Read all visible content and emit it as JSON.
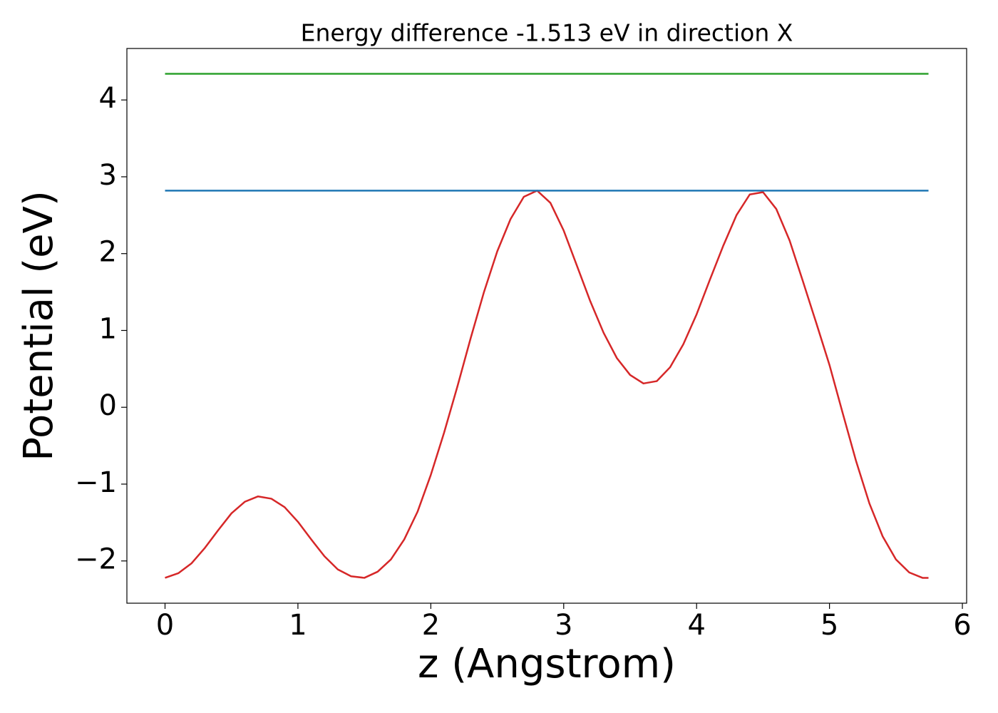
{
  "chart_data": {
    "type": "line",
    "title": "Energy difference -1.513 eV in direction X",
    "xlabel": "z (Angstrom)",
    "ylabel": "Potential (eV)",
    "xlim": [
      -0.287,
      6.032
    ],
    "ylim": [
      -2.55,
      4.67
    ],
    "xticks": [
      0,
      1,
      2,
      3,
      4,
      5,
      6
    ],
    "yticks": [
      {
        "value": -2,
        "label": "−2"
      },
      {
        "value": -1,
        "label": "−1"
      },
      0,
      1,
      2,
      3,
      4
    ],
    "series": [
      {
        "color": "#d62728",
        "x": [
          0,
          0.1,
          0.2,
          0.3,
          0.4,
          0.5,
          0.6,
          0.7,
          0.8,
          0.9,
          1.0,
          1.1,
          1.2,
          1.3,
          1.4,
          1.5,
          1.6,
          1.7,
          1.8,
          1.9,
          2.0,
          2.1,
          2.2,
          2.3,
          2.4,
          2.5,
          2.6,
          2.7,
          2.8,
          2.9,
          3.0,
          3.1,
          3.2,
          3.3,
          3.4,
          3.5,
          3.6,
          3.7,
          3.8,
          3.9,
          4.0,
          4.1,
          4.2,
          4.3,
          4.4,
          4.5,
          4.6,
          4.7,
          4.8,
          4.9,
          5.0,
          5.1,
          5.2,
          5.3,
          5.4,
          5.5,
          5.6,
          5.7,
          5.745
        ],
        "values": [
          -2.22,
          -2.16,
          -2.03,
          -1.83,
          -1.6,
          -1.38,
          -1.23,
          -1.16,
          -1.19,
          -1.3,
          -1.49,
          -1.72,
          -1.94,
          -2.11,
          -2.2,
          -2.22,
          -2.14,
          -1.98,
          -1.72,
          -1.36,
          -0.88,
          -0.33,
          0.27,
          0.9,
          1.5,
          2.03,
          2.45,
          2.74,
          2.82,
          2.66,
          2.3,
          1.84,
          1.38,
          0.97,
          0.64,
          0.42,
          0.31,
          0.34,
          0.52,
          0.82,
          1.21,
          1.66,
          2.1,
          2.5,
          2.77,
          2.8,
          2.58,
          2.17,
          1.64,
          1.1,
          0.55,
          -0.08,
          -0.7,
          -1.25,
          -1.68,
          -1.98,
          -2.15,
          -2.22,
          -2.22
        ]
      },
      {
        "color": "#1f77b4",
        "x": [
          0,
          5.745
        ],
        "values": [
          2.82,
          2.82
        ]
      },
      {
        "color": "#2ca02c",
        "x": [
          0,
          5.745
        ],
        "values": [
          4.34,
          4.34
        ]
      }
    ]
  }
}
